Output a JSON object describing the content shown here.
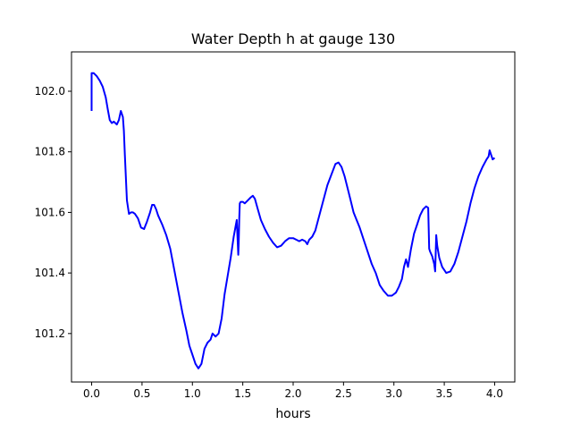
{
  "chart_data": {
    "type": "line",
    "title": "Water Depth h at gauge 130",
    "xlabel": "hours",
    "ylabel": "",
    "xlim": [
      -0.2,
      4.2
    ],
    "ylim": [
      101.04,
      102.13
    ],
    "xticks": [
      0.0,
      0.5,
      1.0,
      1.5,
      2.0,
      2.5,
      3.0,
      3.5,
      4.0
    ],
    "xtick_labels": [
      "0.0",
      "0.5",
      "1.0",
      "1.5",
      "2.0",
      "2.5",
      "3.0",
      "3.5",
      "4.0"
    ],
    "yticks": [
      101.2,
      101.4,
      101.6,
      101.8,
      102.0
    ],
    "ytick_labels": [
      "101.2",
      "101.4",
      "101.6",
      "101.8",
      "102.0"
    ],
    "grid": false,
    "series": [
      {
        "color": "#0000ff",
        "x": [
          0.0,
          0.0,
          0.02,
          0.05,
          0.08,
          0.11,
          0.14,
          0.16,
          0.18,
          0.2,
          0.22,
          0.25,
          0.27,
          0.29,
          0.31,
          0.32,
          0.33,
          0.35,
          0.37,
          0.39,
          0.41,
          0.43,
          0.46,
          0.49,
          0.52,
          0.55,
          0.58,
          0.6,
          0.62,
          0.64,
          0.66,
          0.7,
          0.74,
          0.78,
          0.82,
          0.86,
          0.9,
          0.94,
          0.97,
          1.0,
          1.03,
          1.06,
          1.09,
          1.12,
          1.15,
          1.18,
          1.2,
          1.23,
          1.26,
          1.29,
          1.32,
          1.35,
          1.38,
          1.41,
          1.44,
          1.455,
          1.46,
          1.465,
          1.47,
          1.48,
          1.5,
          1.52,
          1.55,
          1.58,
          1.6,
          1.62,
          1.65,
          1.68,
          1.72,
          1.76,
          1.8,
          1.84,
          1.88,
          1.92,
          1.96,
          2.0,
          2.03,
          2.06,
          2.09,
          2.12,
          2.14,
          2.16,
          2.19,
          2.22,
          2.26,
          2.3,
          2.34,
          2.38,
          2.42,
          2.45,
          2.48,
          2.51,
          2.54,
          2.57,
          2.6,
          2.63,
          2.66,
          2.7,
          2.74,
          2.78,
          2.82,
          2.86,
          2.9,
          2.94,
          2.98,
          3.02,
          3.05,
          3.08,
          3.1,
          3.12,
          3.14,
          3.17,
          3.2,
          3.23,
          3.26,
          3.29,
          3.32,
          3.34,
          3.35,
          3.36,
          3.38,
          3.4,
          3.41,
          3.42,
          3.43,
          3.45,
          3.48,
          3.52,
          3.56,
          3.6,
          3.64,
          3.68,
          3.72,
          3.76,
          3.8,
          3.84,
          3.88,
          3.92,
          3.94,
          3.95,
          3.97,
          3.98,
          4.0
        ],
        "y": [
          101.935,
          102.06,
          102.06,
          102.05,
          102.035,
          102.015,
          101.98,
          101.94,
          101.905,
          101.895,
          101.9,
          101.89,
          101.905,
          101.935,
          101.915,
          101.87,
          101.79,
          101.64,
          101.595,
          101.6,
          101.6,
          101.595,
          101.58,
          101.55,
          101.545,
          101.57,
          101.6,
          101.625,
          101.625,
          101.61,
          101.59,
          101.56,
          101.525,
          101.48,
          101.41,
          101.34,
          101.27,
          101.21,
          101.16,
          101.13,
          101.1,
          101.085,
          101.1,
          101.15,
          101.17,
          101.18,
          101.2,
          101.19,
          101.2,
          101.25,
          101.33,
          101.39,
          101.45,
          101.52,
          101.575,
          101.46,
          101.5,
          101.58,
          101.63,
          101.635,
          101.635,
          101.63,
          101.64,
          101.65,
          101.655,
          101.645,
          101.61,
          101.575,
          101.545,
          101.52,
          101.5,
          101.485,
          101.49,
          101.505,
          101.515,
          101.515,
          101.51,
          101.505,
          101.51,
          101.505,
          101.495,
          101.51,
          101.52,
          101.54,
          101.59,
          101.64,
          101.69,
          101.725,
          101.76,
          101.765,
          101.75,
          101.72,
          101.68,
          101.64,
          101.6,
          101.575,
          101.55,
          101.51,
          101.47,
          101.43,
          101.4,
          101.36,
          101.34,
          101.325,
          101.325,
          101.335,
          101.355,
          101.38,
          101.42,
          101.445,
          101.42,
          101.48,
          101.53,
          101.56,
          101.59,
          101.61,
          101.62,
          101.615,
          101.48,
          101.47,
          101.455,
          101.43,
          101.405,
          101.525,
          101.49,
          101.45,
          101.42,
          101.4,
          101.405,
          101.43,
          101.47,
          101.52,
          101.57,
          101.63,
          101.68,
          101.72,
          101.75,
          101.775,
          101.785,
          101.805,
          101.785,
          101.775,
          101.78
        ]
      }
    ]
  }
}
